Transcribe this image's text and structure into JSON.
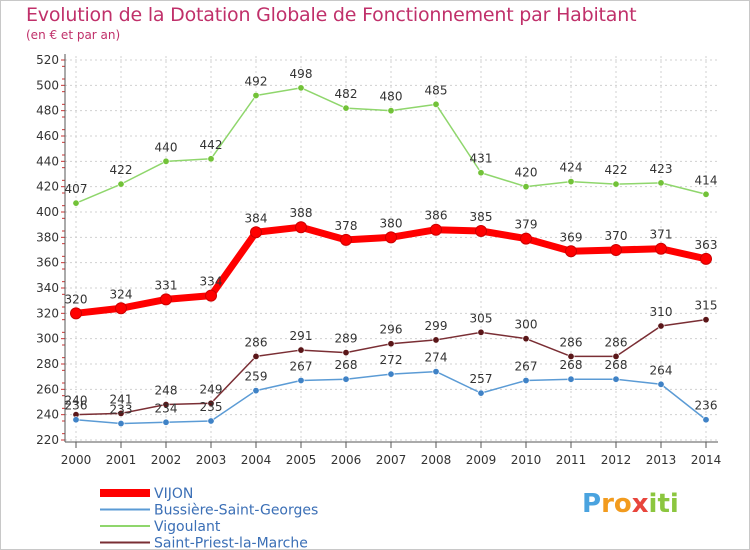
{
  "chart_data": {
    "type": "line",
    "title": "Evolution de la Dotation Globale de Fonctionnement par Habitant",
    "subtitle": "(en € et par an)",
    "categories": [
      "2000",
      "2001",
      "2002",
      "2003",
      "2004",
      "2005",
      "2006",
      "2007",
      "2008",
      "2009",
      "2010",
      "2011",
      "2012",
      "2013",
      "2014"
    ],
    "ylim": [
      220,
      520
    ],
    "yticks": [
      220,
      240,
      260,
      280,
      300,
      320,
      340,
      360,
      380,
      400,
      420,
      440,
      460,
      480,
      500,
      520
    ],
    "grid": true,
    "legend_position": "bottom-left",
    "series": [
      {
        "name": "Vigoulant",
        "color": "#8fd66c",
        "marker": "#72c238",
        "values": [
          407,
          422,
          440,
          442,
          492,
          498,
          482,
          480,
          485,
          431,
          420,
          424,
          422,
          423,
          414
        ]
      },
      {
        "name": "Saint-Priest-la-Marche",
        "color": "#7a2e34",
        "marker": "#5a1618",
        "values": [
          240,
          241,
          248,
          249,
          286,
          291,
          289,
          296,
          299,
          305,
          300,
          286,
          286,
          310,
          315
        ]
      },
      {
        "name": "Bussière-Saint-Georges",
        "color": "#5b9bd5",
        "marker": "#3f82c6",
        "values": [
          236,
          233,
          234,
          235,
          259,
          267,
          268,
          272,
          274,
          257,
          267,
          268,
          268,
          264,
          236
        ]
      },
      {
        "name": "VIJON",
        "color": "#ff0000",
        "marker": "#ff0000",
        "values": [
          320,
          324,
          331,
          334,
          384,
          388,
          378,
          380,
          386,
          385,
          379,
          369,
          370,
          371,
          363
        ]
      }
    ],
    "legend_order": [
      "VIJON",
      "Bussière-Saint-Georges",
      "Vigoulant",
      "Saint-Priest-la-Marche"
    ]
  },
  "logo": {
    "letters": [
      "P",
      "r",
      "o",
      "x",
      "i",
      "t",
      "i"
    ],
    "colors": [
      "#4aa3df",
      "#f29b1e",
      "#f29b1e",
      "#e8453c",
      "#8cc63f",
      "#8cc63f",
      "#8cc63f"
    ]
  }
}
